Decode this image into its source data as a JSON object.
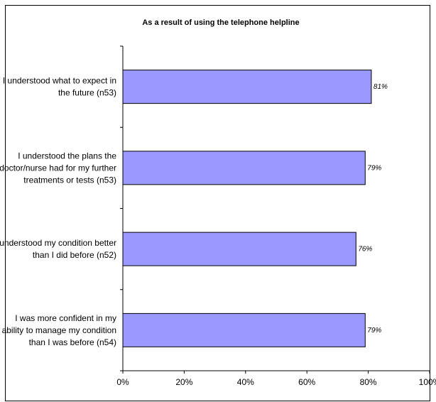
{
  "chart_data": {
    "type": "bar",
    "orientation": "horizontal",
    "title": "As a result of using the telephone helpline",
    "categories": [
      [
        "I understood what to expect in",
        "the future (n53)"
      ],
      [
        "I understood the plans the",
        "doctor/nurse had for my further",
        "treatments or tests (n53)"
      ],
      [
        "I understood my condition better",
        "than I did before (n52)"
      ],
      [
        "I was more confident in my",
        "ability to manage my condition",
        "than I was before (n54)"
      ]
    ],
    "values": [
      81,
      79,
      76,
      79
    ],
    "data_labels": [
      "81%",
      "79%",
      "76%",
      "79%"
    ],
    "x_ticks": [
      "0%",
      "20%",
      "40%",
      "60%",
      "80%",
      "100%"
    ],
    "xlim": [
      0,
      100
    ],
    "grid": false,
    "legend": "none",
    "colors": {
      "bar_fill": "#9999ff",
      "bar_stroke": "#000000",
      "axis": "#000000",
      "frame": "#000000"
    }
  }
}
